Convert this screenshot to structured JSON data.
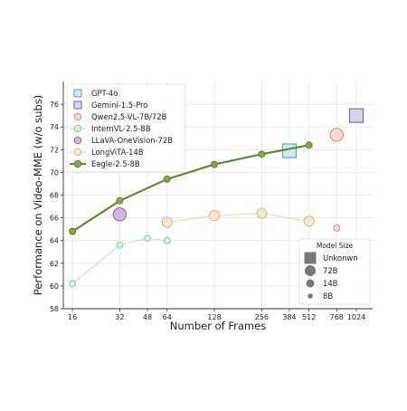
{
  "chart_data": {
    "type": "scatter",
    "title": "",
    "xlabel": "Number of Frames",
    "ylabel": "Performance on Video-MME (w/o subs)",
    "x_scale": "log2",
    "xlim": [
      14,
      1300
    ],
    "ylim": [
      58,
      78
    ],
    "x_ticks": [
      16,
      32,
      48,
      64,
      128,
      256,
      384,
      512,
      768,
      1024
    ],
    "x_tick_labels": [
      "16",
      "32",
      "48",
      "64",
      "128",
      "256",
      "384",
      "512",
      "768",
      "1024"
    ],
    "y_ticks": [
      58,
      60,
      62,
      64,
      66,
      68,
      70,
      72,
      74,
      76
    ],
    "y_tick_labels": [
      "58",
      "60",
      "62",
      "64",
      "66",
      "68",
      "70",
      "72",
      "74",
      "76"
    ],
    "grid": true,
    "legend_position": "top-left",
    "series": [
      {
        "name": "GPT-4o",
        "marker": "square",
        "size": "Unkonwn",
        "line": false,
        "color": "#4ca3c7",
        "fill": "#d5e8f2",
        "points": [
          {
            "x": 384,
            "y": 71.9
          }
        ]
      },
      {
        "name": "Gemini-1.5-Pro",
        "marker": "square",
        "size": "Unkonwn",
        "line": false,
        "color": "#6f62a6",
        "fill": "#d9d4ea",
        "points": [
          {
            "x": 1024,
            "y": 75.0
          }
        ]
      },
      {
        "name": "Qwen2.5-VL-7B/72B",
        "marker": "circle",
        "size": "mixed",
        "line": false,
        "color": "#e0877a",
        "fill": "#f8d9d3",
        "points": [
          {
            "x": 768,
            "y": 73.3,
            "size": "72B"
          },
          {
            "x": 768,
            "y": 65.1,
            "size": "8B"
          }
        ]
      },
      {
        "name": "InternVL-2.5-8B",
        "marker": "circle",
        "size": "8B",
        "line": true,
        "color": "#7fcfa0",
        "fill": "#d8f0e1",
        "points": [
          {
            "x": 16,
            "y": 60.2
          },
          {
            "x": 32,
            "y": 63.6
          },
          {
            "x": 48,
            "y": 64.2
          },
          {
            "x": 64,
            "y": 64.0
          }
        ]
      },
      {
        "name": "LLaVA-OneVision-72B",
        "marker": "circle",
        "size": "72B",
        "line": false,
        "color": "#8b63b8",
        "fill": "#cdb6e2",
        "points": [
          {
            "x": 32,
            "y": 66.3
          }
        ]
      },
      {
        "name": "LongViTA-14B",
        "marker": "circle",
        "size": "14B",
        "line": true,
        "color": "#d8b77a",
        "fill": "#f5e8cf",
        "points": [
          {
            "x": 64,
            "y": 65.6
          },
          {
            "x": 128,
            "y": 66.2
          },
          {
            "x": 256,
            "y": 66.4
          },
          {
            "x": 512,
            "y": 65.7
          }
        ]
      },
      {
        "name": "Eagle-2.5-8B",
        "marker": "circle",
        "size": "8B",
        "line": true,
        "color": "#5c8d2b",
        "fill": "#7fb03a",
        "points": [
          {
            "x": 16,
            "y": 64.8
          },
          {
            "x": 32,
            "y": 67.5
          },
          {
            "x": 64,
            "y": 69.4
          },
          {
            "x": 128,
            "y": 70.7
          },
          {
            "x": 256,
            "y": 71.6
          },
          {
            "x": 512,
            "y": 72.4
          }
        ]
      }
    ],
    "size_legend": {
      "title": "Model Size",
      "position": "bottom-right",
      "items": [
        {
          "label": "Unkonwn",
          "marker": "square"
        },
        {
          "label": "72B",
          "marker": "circle"
        },
        {
          "label": "14B",
          "marker": "circle"
        },
        {
          "label": "8B",
          "marker": "circle"
        }
      ]
    }
  }
}
